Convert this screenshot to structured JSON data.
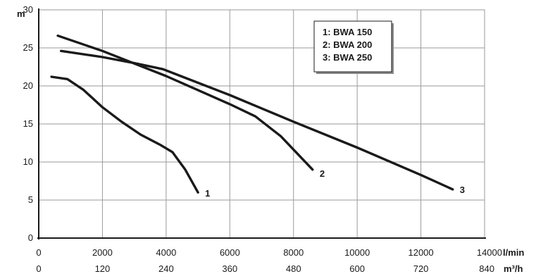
{
  "chart_data": {
    "type": "line",
    "title": "",
    "ylabel": "m",
    "xlabel": "l/min",
    "x2label": "m³/h",
    "ylim": [
      0,
      30
    ],
    "xlim": [
      0,
      14000
    ],
    "grid": true,
    "y_ticks": [
      "0",
      "5",
      "10",
      "15",
      "20",
      "25",
      "30"
    ],
    "x_ticks": [
      "0",
      "2000",
      "4000",
      "6000",
      "8000",
      "10000",
      "12000",
      "14000"
    ],
    "x2_ticks": [
      "0",
      "120",
      "240",
      "360",
      "480",
      "600",
      "720",
      "840"
    ],
    "legend": {
      "placement": "top-right",
      "entries": [
        "1: BWA 150",
        "2: BWA 200",
        "3: BWA 250"
      ]
    },
    "series": [
      {
        "label": "1",
        "x": [
          400,
          900,
          1400,
          2000,
          2600,
          3200,
          3800,
          4200,
          4600,
          5000
        ],
        "y": [
          21.2,
          20.9,
          19.5,
          17.2,
          15.3,
          13.6,
          12.3,
          11.3,
          9.0,
          6.0
        ]
      },
      {
        "label": "2",
        "x": [
          600,
          2000,
          4000,
          6000,
          6800,
          7600,
          8600
        ],
        "y": [
          26.6,
          24.6,
          21.3,
          17.6,
          16.0,
          13.4,
          9.0
        ]
      },
      {
        "label": "3",
        "x": [
          700,
          2000,
          3000,
          3900,
          6000,
          8000,
          10000,
          12000,
          13000
        ],
        "y": [
          24.6,
          23.8,
          23.0,
          22.2,
          18.8,
          15.3,
          11.9,
          8.3,
          6.4
        ]
      }
    ]
  }
}
